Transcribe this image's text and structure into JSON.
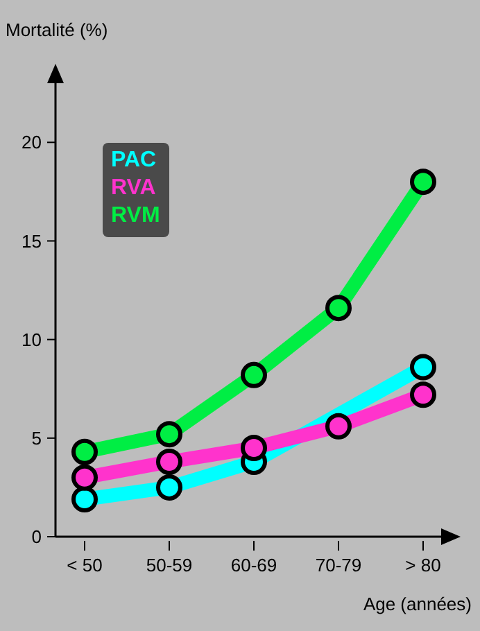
{
  "chart_data": {
    "type": "line",
    "ylabel": "Mortalité (%)",
    "xlabel": "Age (années)",
    "categories": [
      "< 50",
      "50-59",
      "60-69",
      "70-79",
      "> 80"
    ],
    "series": [
      {
        "name": "PAC",
        "color": "#00ffff",
        "values": [
          1.9,
          2.5,
          3.8,
          null,
          8.6
        ]
      },
      {
        "name": "RVA",
        "color": "#ff33cc",
        "values": [
          3.0,
          3.8,
          4.5,
          5.6,
          7.2
        ]
      },
      {
        "name": "RVM",
        "color": "#00ee44",
        "values": [
          4.3,
          5.2,
          8.2,
          11.6,
          18.0
        ]
      }
    ],
    "ylim": [
      0,
      23
    ],
    "yticks": [
      0,
      5,
      10,
      15,
      20
    ],
    "grid": false,
    "legend": "top left",
    "marker": "circle",
    "line_style": "solid"
  }
}
